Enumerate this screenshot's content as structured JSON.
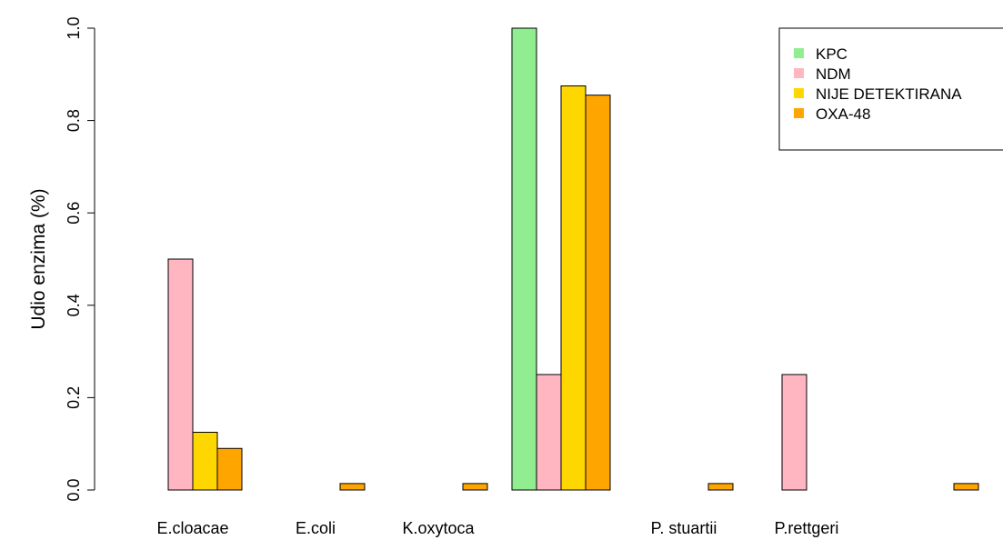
{
  "chart_data": {
    "type": "bar",
    "title": "",
    "xlabel": "",
    "ylabel": "Udio enzima (%)",
    "ylim": [
      0,
      1
    ],
    "yticks": [
      "0.0",
      "0.2",
      "0.4",
      "0.6",
      "0.8",
      "1.0"
    ],
    "ytick_values": [
      0,
      0.2,
      0.4,
      0.6,
      0.8,
      1.0
    ],
    "categories": [
      "E.cloacae",
      "E.coli",
      "K.oxytoca",
      "",
      "P. stuartii",
      "P.rettgeri",
      ""
    ],
    "series": [
      {
        "name": "KPC",
        "color": "#90EE90",
        "values": [
          0,
          0,
          0,
          1.0,
          0,
          0,
          0
        ]
      },
      {
        "name": "NDM",
        "color": "#FFB6C1",
        "values": [
          0.5,
          0,
          0,
          0.25,
          0,
          0.25,
          0
        ]
      },
      {
        "name": "NIJE DETEKTIRANA",
        "color": "#FFD700",
        "values": [
          0.125,
          0,
          0,
          0.875,
          0,
          0,
          0
        ]
      },
      {
        "name": "OXA-48",
        "color": "#FFA500",
        "values": [
          0.09,
          0.014,
          0.014,
          0.855,
          0.014,
          0,
          0.014
        ]
      }
    ],
    "grid": false,
    "legend_position": "top-right"
  }
}
